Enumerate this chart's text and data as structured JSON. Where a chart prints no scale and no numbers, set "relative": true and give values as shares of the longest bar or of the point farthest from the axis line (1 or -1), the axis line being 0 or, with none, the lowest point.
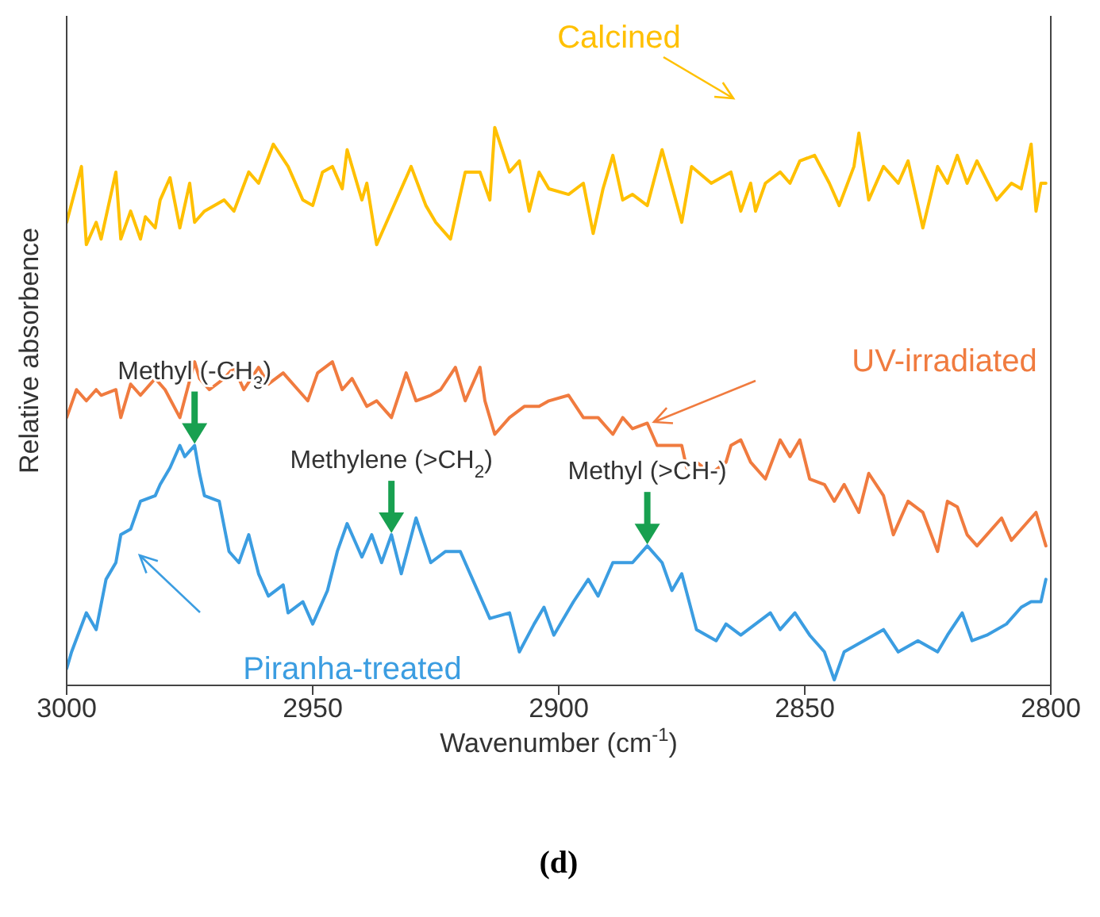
{
  "chart_data": {
    "type": "line",
    "relative": true,
    "xlabel": "Wavenumber (cm$^{-1}$)",
    "ylabel": "Relative absorbence",
    "xlim": [
      3000,
      2800
    ],
    "xticks": [
      3000,
      2950,
      2900,
      2850,
      2800
    ],
    "grid": false,
    "legend": false,
    "marker": "none",
    "line_style": "solid",
    "series": [
      {
        "name": "Calcined",
        "color": "#ffc000",
        "x": [
          3000,
          2997,
          2996,
          2994,
          2993,
          2990,
          2989,
          2987,
          2985,
          2984,
          2982,
          2981,
          2979,
          2977,
          2975,
          2974,
          2972,
          2968,
          2966,
          2963,
          2961,
          2958,
          2955,
          2952,
          2950,
          2948,
          2946,
          2944,
          2943,
          2940,
          2939,
          2937,
          2935,
          2933,
          2930,
          2927,
          2925,
          2922,
          2919,
          2916,
          2914,
          2913,
          2910,
          2908,
          2906,
          2904,
          2902,
          2898,
          2895,
          2893,
          2891,
          2889,
          2887,
          2885,
          2882,
          2879,
          2875,
          2873,
          2869,
          2865,
          2863,
          2861,
          2860,
          2858,
          2855,
          2853,
          2851,
          2848,
          2845,
          2843,
          2840,
          2839,
          2837,
          2834,
          2831,
          2829,
          2826,
          2823,
          2821,
          2819,
          2817,
          2815,
          2811,
          2808,
          2806,
          2804,
          2803,
          2802,
          2801
        ],
        "values": [
          0.83,
          0.93,
          0.79,
          0.83,
          0.8,
          0.92,
          0.8,
          0.85,
          0.8,
          0.84,
          0.82,
          0.87,
          0.91,
          0.82,
          0.9,
          0.83,
          0.85,
          0.87,
          0.85,
          0.92,
          0.9,
          0.97,
          0.93,
          0.87,
          0.86,
          0.92,
          0.93,
          0.89,
          0.96,
          0.87,
          0.9,
          0.79,
          0.83,
          0.87,
          0.93,
          0.86,
          0.83,
          0.8,
          0.92,
          0.92,
          0.87,
          1.0,
          0.92,
          0.94,
          0.85,
          0.92,
          0.89,
          0.88,
          0.9,
          0.81,
          0.89,
          0.95,
          0.87,
          0.88,
          0.86,
          0.96,
          0.83,
          0.93,
          0.9,
          0.92,
          0.85,
          0.9,
          0.85,
          0.9,
          0.92,
          0.9,
          0.94,
          0.95,
          0.9,
          0.86,
          0.93,
          0.99,
          0.87,
          0.93,
          0.9,
          0.94,
          0.82,
          0.93,
          0.9,
          0.95,
          0.9,
          0.94,
          0.87,
          0.9,
          0.89,
          0.97,
          0.85,
          0.9,
          0.9
        ]
      },
      {
        "name": "UV-irradiated",
        "color": "#f07b3f",
        "x": [
          3000,
          2998,
          2996,
          2994,
          2993,
          2990,
          2989,
          2987,
          2985,
          2982,
          2980,
          2977,
          2974,
          2973,
          2971,
          2968,
          2966,
          2964,
          2961,
          2959,
          2956,
          2953,
          2951,
          2949,
          2946,
          2944,
          2942,
          2939,
          2937,
          2934,
          2931,
          2929,
          2926,
          2924,
          2921,
          2919,
          2916,
          2915,
          2913,
          2910,
          2907,
          2904,
          2902,
          2898,
          2895,
          2892,
          2889,
          2887,
          2885,
          2882,
          2880,
          2878,
          2875,
          2874,
          2872,
          2869,
          2866,
          2865,
          2863,
          2861,
          2858,
          2855,
          2853,
          2851,
          2849,
          2846,
          2844,
          2842,
          2839,
          2837,
          2834,
          2832,
          2829,
          2826,
          2823,
          2821,
          2819,
          2817,
          2815,
          2813,
          2810,
          2808,
          2805,
          2803,
          2801
        ],
        "values": [
          0.48,
          0.53,
          0.51,
          0.53,
          0.52,
          0.53,
          0.48,
          0.54,
          0.52,
          0.55,
          0.53,
          0.48,
          0.58,
          0.55,
          0.53,
          0.55,
          0.57,
          0.53,
          0.57,
          0.54,
          0.56,
          0.53,
          0.51,
          0.56,
          0.58,
          0.53,
          0.55,
          0.5,
          0.51,
          0.48,
          0.56,
          0.51,
          0.52,
          0.53,
          0.57,
          0.51,
          0.57,
          0.51,
          0.45,
          0.48,
          0.5,
          0.5,
          0.51,
          0.52,
          0.48,
          0.48,
          0.45,
          0.48,
          0.46,
          0.47,
          0.43,
          0.43,
          0.43,
          0.39,
          0.4,
          0.38,
          0.4,
          0.43,
          0.44,
          0.4,
          0.37,
          0.44,
          0.41,
          0.44,
          0.37,
          0.36,
          0.33,
          0.36,
          0.31,
          0.38,
          0.34,
          0.27,
          0.33,
          0.31,
          0.24,
          0.33,
          0.32,
          0.27,
          0.25,
          0.27,
          0.3,
          0.26,
          0.29,
          0.31,
          0.25
        ]
      },
      {
        "name": "Piranha-treated",
        "color": "#3b9de1",
        "x": [
          3000,
          2999,
          2996,
          2994,
          2992,
          2990,
          2989,
          2987,
          2985,
          2982,
          2981,
          2979,
          2977,
          2976,
          2974,
          2973,
          2972,
          2969,
          2967,
          2965,
          2963,
          2961,
          2959,
          2956,
          2955,
          2952,
          2950,
          2947,
          2945,
          2943,
          2940,
          2938,
          2936,
          2934,
          2932,
          2929,
          2926,
          2923,
          2920,
          2918,
          2914,
          2910,
          2908,
          2905,
          2903,
          2901,
          2897,
          2894,
          2892,
          2889,
          2885,
          2882,
          2879,
          2877,
          2875,
          2872,
          2868,
          2866,
          2863,
          2860,
          2857,
          2855,
          2852,
          2849,
          2846,
          2844,
          2842,
          2838,
          2834,
          2831,
          2827,
          2823,
          2821,
          2818,
          2816,
          2813,
          2809,
          2806,
          2804,
          2802,
          2801
        ],
        "values": [
          0.03,
          0.06,
          0.13,
          0.1,
          0.19,
          0.22,
          0.27,
          0.28,
          0.33,
          0.34,
          0.36,
          0.39,
          0.43,
          0.41,
          0.43,
          0.38,
          0.34,
          0.33,
          0.24,
          0.22,
          0.27,
          0.2,
          0.16,
          0.18,
          0.13,
          0.15,
          0.11,
          0.17,
          0.24,
          0.29,
          0.23,
          0.27,
          0.22,
          0.27,
          0.2,
          0.3,
          0.22,
          0.24,
          0.24,
          0.2,
          0.12,
          0.13,
          0.06,
          0.11,
          0.14,
          0.09,
          0.15,
          0.19,
          0.16,
          0.22,
          0.22,
          0.25,
          0.22,
          0.17,
          0.2,
          0.1,
          0.08,
          0.11,
          0.09,
          0.11,
          0.13,
          0.1,
          0.13,
          0.09,
          0.06,
          0.01,
          0.06,
          0.08,
          0.1,
          0.06,
          0.08,
          0.06,
          0.09,
          0.13,
          0.08,
          0.09,
          0.11,
          0.14,
          0.15,
          0.15,
          0.19
        ]
      }
    ],
    "annotations": [
      {
        "text": "Methyl (-CH$_{3}$)",
        "x": 2974,
        "y": 0.43
      },
      {
        "text": "Methylene (>CH$_{2}$)",
        "x": 2934,
        "y": 0.27
      },
      {
        "text": "Methyl (>CH-)",
        "x": 2882,
        "y": 0.25
      },
      "(d)"
    ]
  }
}
